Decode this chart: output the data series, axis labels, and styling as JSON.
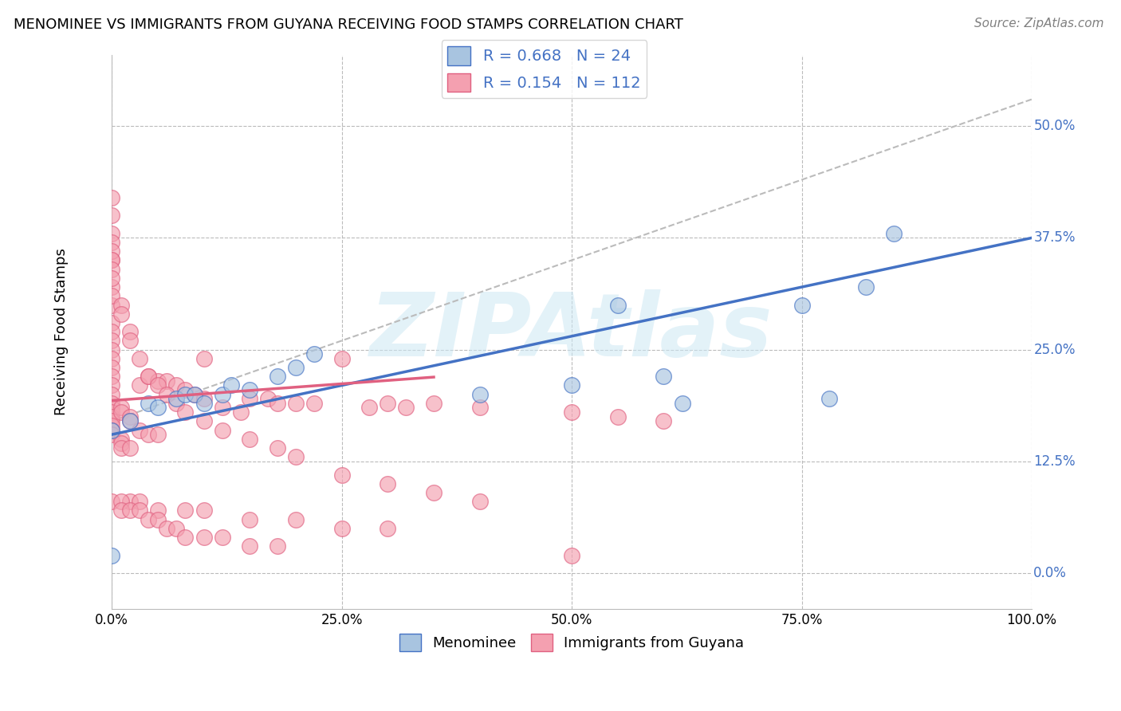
{
  "title": "MENOMINEE VS IMMIGRANTS FROM GUYANA RECEIVING FOOD STAMPS CORRELATION CHART",
  "source": "Source: ZipAtlas.com",
  "ylabel": "Receiving Food Stamps",
  "watermark": "ZIPAtlas",
  "legend_blue_R": "0.668",
  "legend_blue_N": "24",
  "legend_pink_R": "0.154",
  "legend_pink_N": "112",
  "legend_label_blue": "Menominee",
  "legend_label_pink": "Immigrants from Guyana",
  "xlim": [
    0.0,
    1.0
  ],
  "ylim": [
    -0.04,
    0.58
  ],
  "xticks": [
    0.0,
    0.25,
    0.5,
    0.75,
    1.0
  ],
  "xticklabels": [
    "0.0%",
    "25.0%",
    "50.0%",
    "75.0%",
    "100.0%"
  ],
  "ytick_positions": [
    0.0,
    0.125,
    0.25,
    0.375,
    0.5
  ],
  "ytick_labels": [
    "0.0%",
    "12.5%",
    "25.0%",
    "37.5%",
    "50.0%"
  ],
  "blue_color": "#a8c4e0",
  "pink_color": "#f4a0b0",
  "blue_line_color": "#4472c4",
  "pink_line_color": "#e06080",
  "grid_color": "#bbbbbb",
  "background_color": "#ffffff",
  "blue_scatter_x": [
    0.0,
    0.0,
    0.02,
    0.04,
    0.05,
    0.07,
    0.08,
    0.09,
    0.1,
    0.12,
    0.13,
    0.15,
    0.18,
    0.2,
    0.22,
    0.55,
    0.6,
    0.62,
    0.75,
    0.78,
    0.82,
    0.85,
    0.5,
    0.4
  ],
  "blue_scatter_y": [
    0.02,
    0.16,
    0.17,
    0.19,
    0.185,
    0.195,
    0.2,
    0.2,
    0.19,
    0.2,
    0.21,
    0.205,
    0.22,
    0.23,
    0.245,
    0.3,
    0.22,
    0.19,
    0.3,
    0.195,
    0.32,
    0.38,
    0.21,
    0.2
  ],
  "pink_scatter_x": [
    0.0,
    0.0,
    0.0,
    0.0,
    0.0,
    0.0,
    0.0,
    0.0,
    0.0,
    0.0,
    0.0,
    0.0,
    0.0,
    0.0,
    0.0,
    0.0,
    0.0,
    0.0,
    0.0,
    0.0,
    0.01,
    0.01,
    0.01,
    0.01,
    0.01,
    0.02,
    0.02,
    0.02,
    0.03,
    0.03,
    0.04,
    0.04,
    0.05,
    0.05,
    0.06,
    0.07,
    0.08,
    0.09,
    0.1,
    0.1,
    0.12,
    0.14,
    0.15,
    0.17,
    0.18,
    0.2,
    0.22,
    0.25,
    0.28,
    0.3,
    0.32,
    0.35,
    0.4,
    0.5,
    0.55,
    0.6,
    0.0,
    0.0,
    0.0,
    0.0,
    0.0,
    0.0,
    0.0,
    0.01,
    0.01,
    0.02,
    0.02,
    0.03,
    0.04,
    0.05,
    0.06,
    0.07,
    0.08,
    0.1,
    0.12,
    0.15,
    0.18,
    0.2,
    0.25,
    0.3,
    0.35,
    0.4,
    0.02,
    0.03,
    0.05,
    0.08,
    0.1,
    0.15,
    0.2,
    0.25,
    0.3,
    0.5,
    0.0,
    0.0,
    0.0,
    0.01,
    0.01,
    0.02,
    0.03,
    0.04,
    0.05,
    0.06,
    0.07,
    0.08,
    0.1,
    0.12,
    0.15,
    0.18
  ],
  "pink_scatter_y": [
    0.3,
    0.35,
    0.32,
    0.28,
    0.27,
    0.26,
    0.25,
    0.24,
    0.23,
    0.22,
    0.21,
    0.2,
    0.19,
    0.185,
    0.18,
    0.175,
    0.17,
    0.165,
    0.16,
    0.155,
    0.15,
    0.145,
    0.14,
    0.185,
    0.18,
    0.175,
    0.17,
    0.14,
    0.21,
    0.16,
    0.22,
    0.155,
    0.215,
    0.155,
    0.215,
    0.21,
    0.205,
    0.2,
    0.24,
    0.195,
    0.185,
    0.18,
    0.195,
    0.195,
    0.19,
    0.19,
    0.19,
    0.24,
    0.185,
    0.19,
    0.185,
    0.19,
    0.185,
    0.18,
    0.175,
    0.17,
    0.38,
    0.37,
    0.36,
    0.35,
    0.34,
    0.33,
    0.31,
    0.3,
    0.29,
    0.27,
    0.26,
    0.24,
    0.22,
    0.21,
    0.2,
    0.19,
    0.18,
    0.17,
    0.16,
    0.15,
    0.14,
    0.13,
    0.11,
    0.1,
    0.09,
    0.08,
    0.08,
    0.08,
    0.07,
    0.07,
    0.07,
    0.06,
    0.06,
    0.05,
    0.05,
    0.02,
    0.42,
    0.4,
    0.08,
    0.08,
    0.07,
    0.07,
    0.07,
    0.06,
    0.06,
    0.05,
    0.05,
    0.04,
    0.04,
    0.04,
    0.03,
    0.03
  ],
  "blue_line_x": [
    0.0,
    1.0
  ],
  "blue_line_y_intercept": 0.155,
  "blue_line_slope": 0.22,
  "pink_line_x": [
    0.0,
    0.35
  ],
  "pink_line_y_intercept": 0.193,
  "pink_line_slope": 0.075,
  "dashed_line_x": [
    0.0,
    1.0
  ],
  "dashed_line_y_intercept": 0.17,
  "dashed_line_slope": 0.36
}
